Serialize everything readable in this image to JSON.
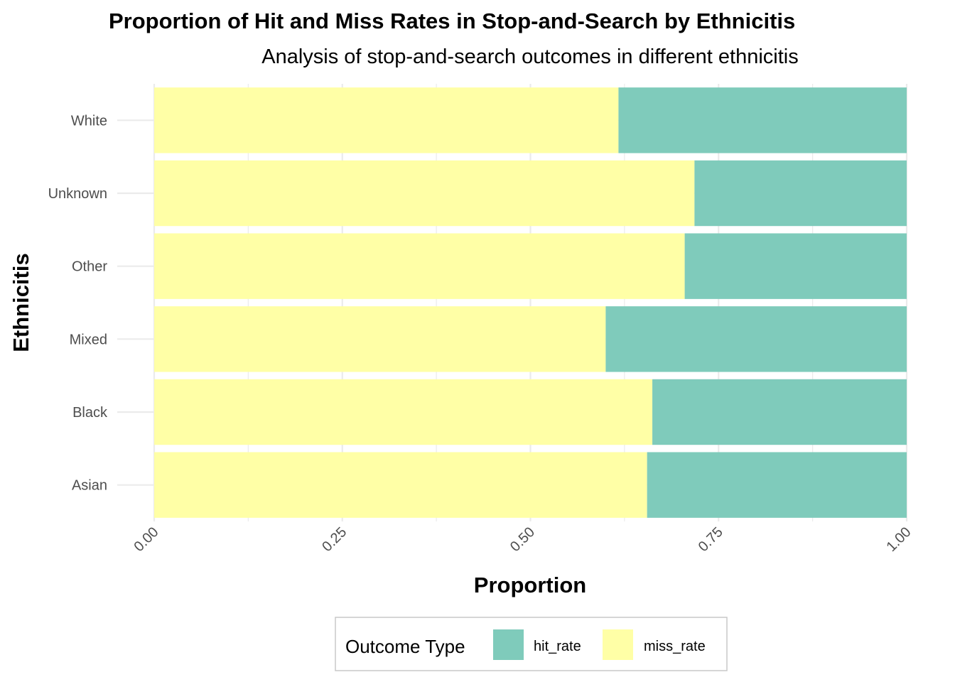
{
  "chart_data": {
    "type": "bar",
    "orientation": "horizontal",
    "stacked": "proportion",
    "title": "Proportion of Hit and Miss Rates in Stop-and-Search by Ethnicitis",
    "subtitle": "Analysis of stop-and-search outcomes in different ethnicitis",
    "xlabel": "Proportion",
    "ylabel": "Ethnicitis",
    "xlim": [
      0,
      1
    ],
    "x_ticks": [
      "0.00",
      "0.25",
      "0.50",
      "0.75",
      "1.00"
    ],
    "categories": [
      "Asian",
      "Black",
      "Mixed",
      "Other",
      "Unknown",
      "White"
    ],
    "series": [
      {
        "name": "miss_rate",
        "color": "#ffffa6",
        "values": [
          0.655,
          0.662,
          0.6,
          0.705,
          0.718,
          0.617
        ]
      },
      {
        "name": "hit_rate",
        "color": "#7fcbbb",
        "values": [
          0.345,
          0.338,
          0.4,
          0.295,
          0.282,
          0.383
        ]
      }
    ],
    "legend": {
      "title": "Outcome Type",
      "position": "bottom",
      "items": [
        "hit_rate",
        "miss_rate"
      ]
    },
    "grid": true
  }
}
